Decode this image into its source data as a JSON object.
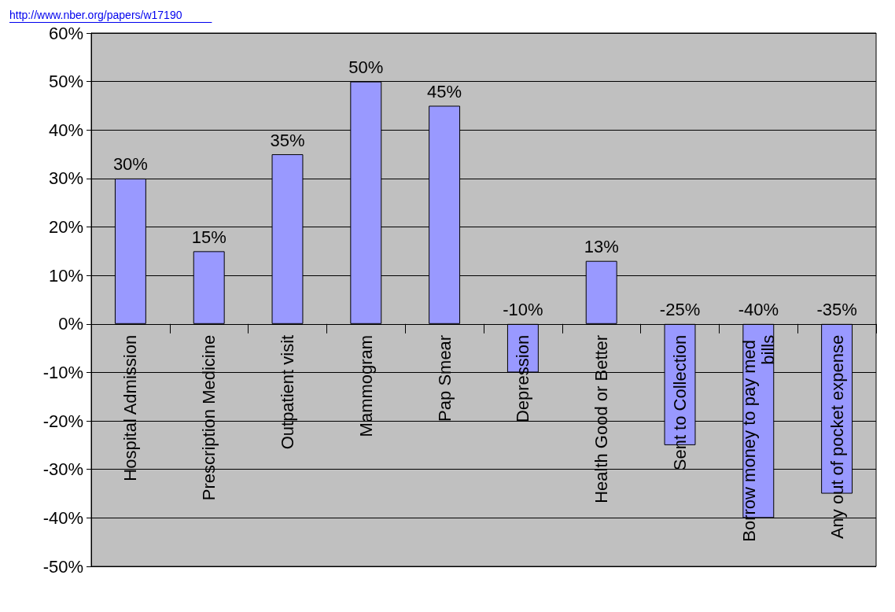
{
  "chart_data": {
    "type": "bar",
    "annotations": [
      "http://www.nber.org/papers/w17190"
    ],
    "categories": [
      "Hospital Admission",
      "Prescription Medicine",
      "Outpatient visit",
      "Mammogram",
      "Pap Smear",
      "Depression",
      "Health Good or Better",
      "Sent to Collection",
      "Borrow money to pay med bills",
      "Any out of pocket expense"
    ],
    "series": [
      {
        "color": "#9999ff",
        "values": [
          30,
          15,
          35,
          50,
          45,
          -10,
          13,
          -25,
          -40,
          -35
        ],
        "value_labels": [
          "30%",
          "15%",
          "35%",
          "50%",
          "45%",
          "-10%",
          "13%",
          "-25%",
          "-40%",
          "-35%"
        ]
      }
    ],
    "ylim": [
      -50,
      60
    ],
    "yticks": [
      {
        "value": -50,
        "label": "-50%"
      },
      {
        "value": -40,
        "label": "-40%"
      },
      {
        "value": -30,
        "label": "-30%"
      },
      {
        "value": -20,
        "label": "-20%"
      },
      {
        "value": -10,
        "label": "-10%"
      },
      {
        "value": 0,
        "label": "0%"
      },
      {
        "value": 10,
        "label": "10%"
      },
      {
        "value": 20,
        "label": "20%"
      },
      {
        "value": 30,
        "label": "30%"
      },
      {
        "value": 40,
        "label": "40%"
      },
      {
        "value": 50,
        "label": "50%"
      },
      {
        "value": 60,
        "label": "60%"
      }
    ],
    "grid": "y"
  }
}
